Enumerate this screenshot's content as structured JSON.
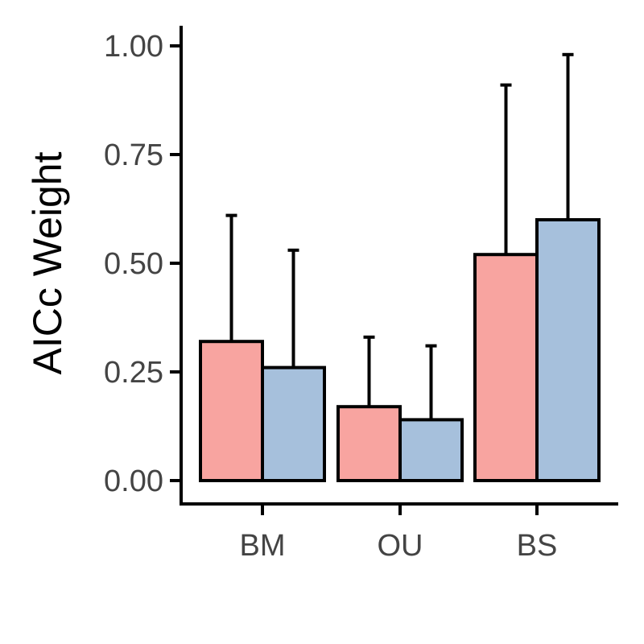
{
  "chart_data": {
    "type": "bar",
    "categories": [
      "BM",
      "OU",
      "BS"
    ],
    "series": [
      {
        "color": "#F8A4A0",
        "values": [
          0.32,
          0.17,
          0.52
        ],
        "error_upper": [
          0.61,
          0.33,
          0.91
        ]
      },
      {
        "color": "#A6C0DC",
        "values": [
          0.26,
          0.14,
          0.6
        ],
        "error_upper": [
          0.53,
          0.31,
          0.98
        ]
      }
    ],
    "xlabel": "",
    "ylabel": "AICc Weight",
    "ylim": [
      0,
      1
    ],
    "yticks": [
      0,
      0.25,
      0.5,
      0.75,
      1
    ],
    "ytick_labels": [
      "0.00",
      "0.25",
      "0.50",
      "0.75",
      "1.00"
    ],
    "grid": false,
    "legend": "none",
    "bar_outline_color": "#000000"
  }
}
